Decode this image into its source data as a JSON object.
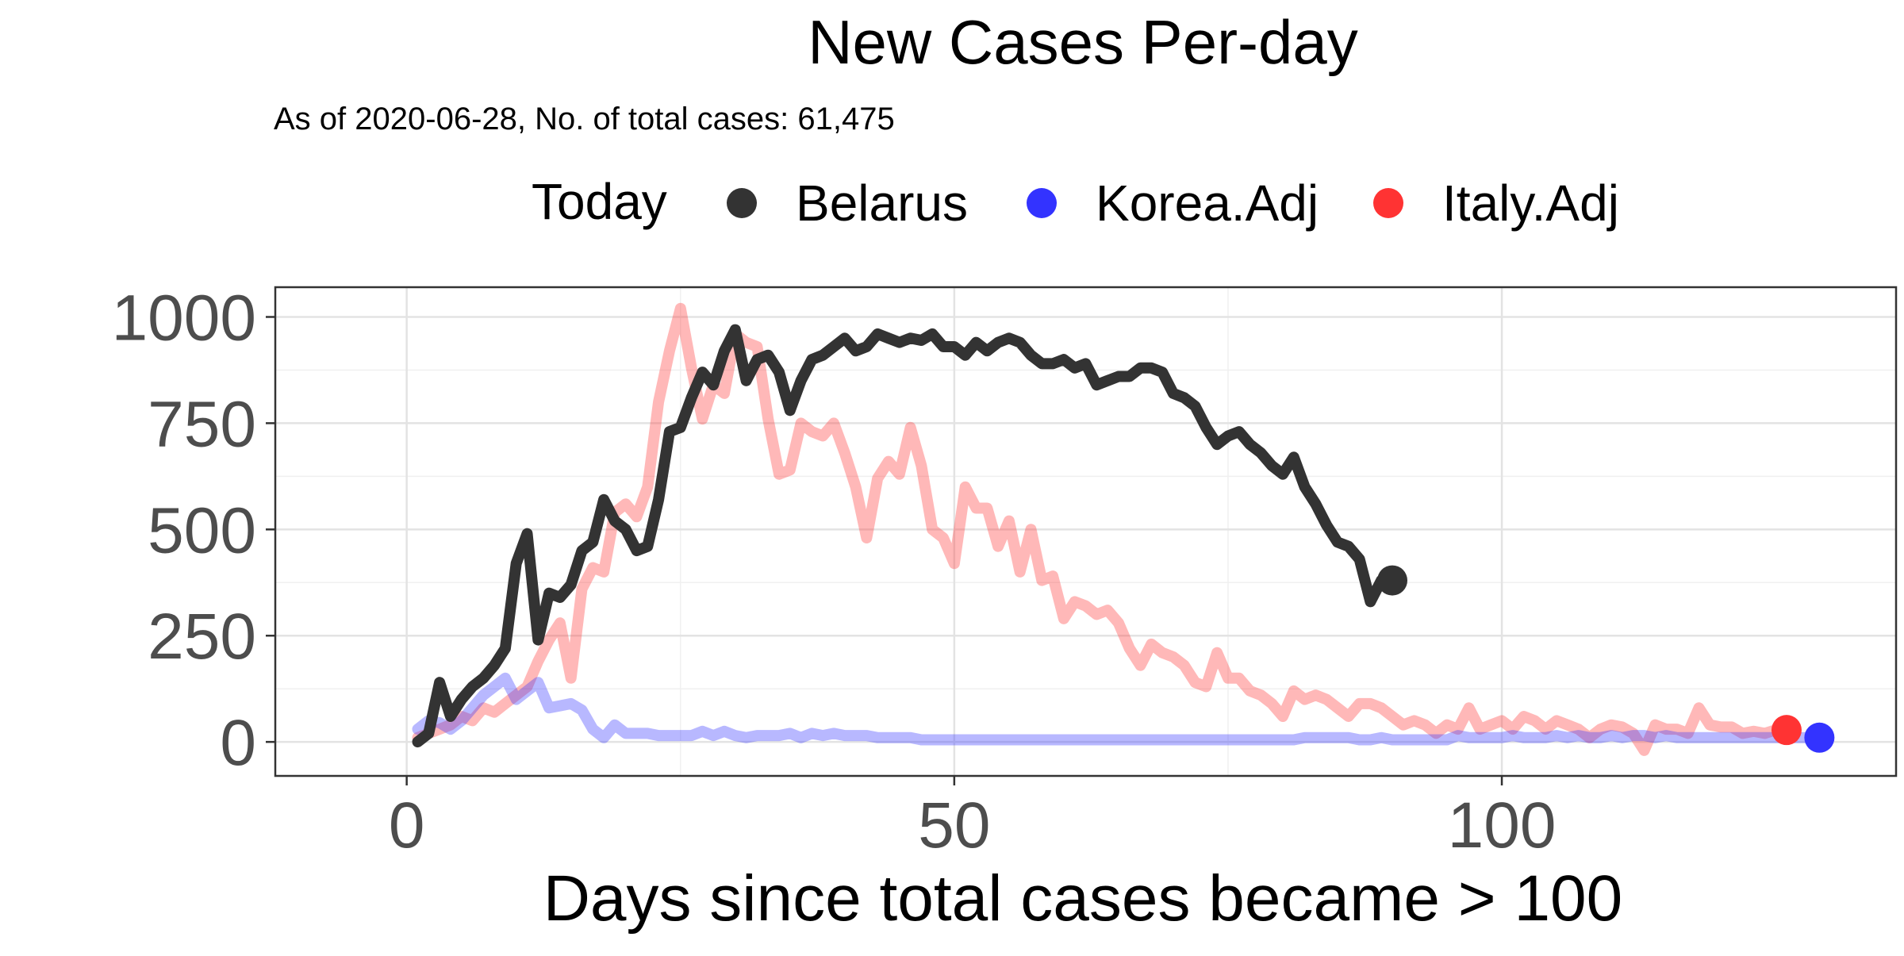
{
  "chart_data": {
    "type": "line",
    "title": "New Cases Per-day",
    "subtitle": "As of 2020-06-28, No. of total cases: 61,475",
    "xlabel": "Days since total cases became > 100",
    "ylabel": "",
    "xlim": [
      -12,
      136
    ],
    "ylim": [
      -80,
      1070
    ],
    "x_ticks": [
      0,
      50,
      100
    ],
    "x_tick_labels": [
      "0",
      "50",
      "100"
    ],
    "y_ticks": [
      0,
      250,
      500,
      750,
      1000
    ],
    "y_tick_labels": [
      "0",
      "250",
      "500",
      "750",
      "1000"
    ],
    "grid": true,
    "legend": {
      "position": "top",
      "title": "Today",
      "entries": [
        {
          "name": "Belarus",
          "color": "#333333"
        },
        {
          "name": "Korea.Adj",
          "color": "#3333ff"
        },
        {
          "name": "Italy.Adj",
          "color": "#ff3333"
        }
      ]
    },
    "series": [
      {
        "name": "Italy.Adj",
        "color": "#ff3333",
        "line_opacity": 0.35,
        "x": [
          1,
          2,
          3,
          4,
          5,
          6,
          7,
          8,
          9,
          10,
          11,
          12,
          13,
          14,
          15,
          16,
          17,
          18,
          19,
          20,
          21,
          22,
          23,
          24,
          25,
          26,
          27,
          28,
          29,
          30,
          31,
          32,
          33,
          34,
          35,
          36,
          37,
          38,
          39,
          40,
          41,
          42,
          43,
          44,
          45,
          46,
          47,
          48,
          49,
          50,
          51,
          52,
          53,
          54,
          55,
          56,
          57,
          58,
          59,
          60,
          61,
          62,
          63,
          64,
          65,
          66,
          67,
          68,
          69,
          70,
          71,
          72,
          73,
          74,
          75,
          76,
          77,
          78,
          79,
          80,
          81,
          82,
          83,
          84,
          85,
          86,
          87,
          88,
          89,
          90,
          91,
          92,
          93,
          94,
          95,
          96,
          97,
          98,
          99,
          100,
          101,
          102,
          103,
          104,
          105,
          106,
          107,
          108,
          109,
          110,
          111,
          112,
          113,
          114,
          115,
          116,
          117,
          118,
          119,
          120,
          121,
          122,
          123,
          124,
          125,
          126
        ],
        "values": [
          10,
          20,
          30,
          40,
          60,
          50,
          80,
          70,
          90,
          110,
          130,
          190,
          240,
          280,
          150,
          360,
          410,
          400,
          540,
          560,
          530,
          600,
          800,
          920,
          1020,
          880,
          760,
          840,
          820,
          960,
          940,
          930,
          760,
          630,
          640,
          750,
          730,
          720,
          750,
          680,
          600,
          480,
          620,
          660,
          630,
          740,
          650,
          500,
          480,
          420,
          600,
          550,
          550,
          460,
          520,
          400,
          500,
          380,
          390,
          290,
          330,
          320,
          300,
          310,
          280,
          220,
          180,
          230,
          210,
          200,
          180,
          140,
          130,
          210,
          150,
          150,
          120,
          110,
          90,
          60,
          120,
          100,
          110,
          100,
          80,
          60,
          90,
          90,
          80,
          60,
          40,
          50,
          40,
          20,
          40,
          30,
          80,
          30,
          40,
          50,
          30,
          60,
          50,
          30,
          50,
          40,
          30,
          10,
          30,
          40,
          35,
          20,
          -20,
          40,
          30,
          30,
          20,
          80,
          40,
          35,
          35,
          20,
          25,
          20,
          28,
          28
        ]
      },
      {
        "name": "Korea.Adj",
        "color": "#3333ff",
        "line_opacity": 0.35,
        "x": [
          1,
          2,
          3,
          4,
          5,
          6,
          7,
          8,
          9,
          10,
          11,
          12,
          13,
          14,
          15,
          16,
          17,
          18,
          19,
          20,
          21,
          22,
          23,
          24,
          25,
          26,
          27,
          28,
          29,
          30,
          31,
          32,
          33,
          34,
          35,
          36,
          37,
          38,
          39,
          40,
          41,
          42,
          43,
          44,
          45,
          46,
          47,
          48,
          49,
          50,
          51,
          52,
          53,
          54,
          55,
          56,
          57,
          58,
          59,
          60,
          61,
          62,
          63,
          64,
          65,
          66,
          67,
          68,
          69,
          70,
          71,
          72,
          73,
          74,
          75,
          76,
          77,
          78,
          79,
          80,
          81,
          82,
          83,
          84,
          85,
          86,
          87,
          88,
          89,
          90,
          91,
          92,
          93,
          94,
          95,
          96,
          97,
          98,
          99,
          100,
          101,
          102,
          103,
          104,
          105,
          106,
          107,
          108,
          109,
          110,
          111,
          112,
          113,
          114,
          115,
          116,
          117,
          118,
          119,
          120,
          121,
          122,
          123,
          124,
          125,
          126,
          127,
          128,
          129
        ],
        "values": [
          30,
          50,
          45,
          30,
          50,
          80,
          110,
          130,
          150,
          100,
          120,
          140,
          80,
          85,
          90,
          75,
          30,
          10,
          40,
          20,
          20,
          20,
          15,
          15,
          15,
          15,
          25,
          15,
          25,
          15,
          10,
          15,
          15,
          15,
          20,
          10,
          20,
          15,
          20,
          15,
          15,
          15,
          10,
          10,
          10,
          10,
          5,
          5,
          5,
          5,
          5,
          5,
          5,
          5,
          5,
          5,
          5,
          5,
          5,
          5,
          5,
          5,
          5,
          5,
          5,
          5,
          5,
          5,
          5,
          5,
          5,
          5,
          5,
          5,
          5,
          5,
          5,
          5,
          5,
          5,
          5,
          10,
          10,
          10,
          10,
          10,
          5,
          5,
          10,
          5,
          5,
          5,
          5,
          5,
          5,
          15,
          10,
          10,
          10,
          10,
          15,
          10,
          10,
          10,
          15,
          10,
          15,
          10,
          10,
          15,
          10,
          15,
          15,
          10,
          15,
          10,
          10,
          10,
          10,
          10,
          10,
          10,
          10,
          10,
          10,
          10,
          10,
          10,
          10
        ]
      },
      {
        "name": "Belarus",
        "color": "#333333",
        "line_opacity": 1,
        "x": [
          1,
          2,
          3,
          4,
          5,
          6,
          7,
          8,
          9,
          10,
          11,
          12,
          13,
          14,
          15,
          16,
          17,
          18,
          19,
          20,
          21,
          22,
          23,
          24,
          25,
          26,
          27,
          28,
          29,
          30,
          31,
          32,
          33,
          34,
          35,
          36,
          37,
          38,
          39,
          40,
          41,
          42,
          43,
          44,
          45,
          46,
          47,
          48,
          49,
          50,
          51,
          52,
          53,
          54,
          55,
          56,
          57,
          58,
          59,
          60,
          61,
          62,
          63,
          64,
          65,
          66,
          67,
          68,
          69,
          70,
          71,
          72,
          73,
          74,
          75,
          76,
          77,
          78,
          79,
          80,
          81,
          82,
          83,
          84,
          85,
          86,
          87,
          88,
          89,
          90
        ],
        "values": [
          0,
          20,
          140,
          60,
          100,
          130,
          150,
          180,
          220,
          420,
          490,
          240,
          350,
          340,
          370,
          450,
          470,
          570,
          520,
          500,
          450,
          460,
          570,
          730,
          740,
          810,
          870,
          840,
          920,
          970,
          850,
          900,
          910,
          870,
          780,
          850,
          900,
          910,
          930,
          950,
          920,
          930,
          960,
          950,
          940,
          950,
          945,
          960,
          930,
          930,
          910,
          940,
          920,
          940,
          950,
          940,
          910,
          890,
          890,
          900,
          880,
          890,
          840,
          850,
          860,
          860,
          880,
          880,
          870,
          820,
          810,
          790,
          740,
          700,
          720,
          730,
          700,
          680,
          650,
          630,
          670,
          600,
          560,
          510,
          470,
          460,
          430,
          330,
          380,
          380
        ]
      }
    ],
    "today_points": [
      {
        "name": "Belarus",
        "x": 90,
        "y": 380,
        "color": "#333333"
      },
      {
        "name": "Italy.Adj",
        "x": 126,
        "y": 28,
        "color": "#ff3333"
      },
      {
        "name": "Korea.Adj",
        "x": 129,
        "y": 10,
        "color": "#3333ff"
      }
    ]
  }
}
